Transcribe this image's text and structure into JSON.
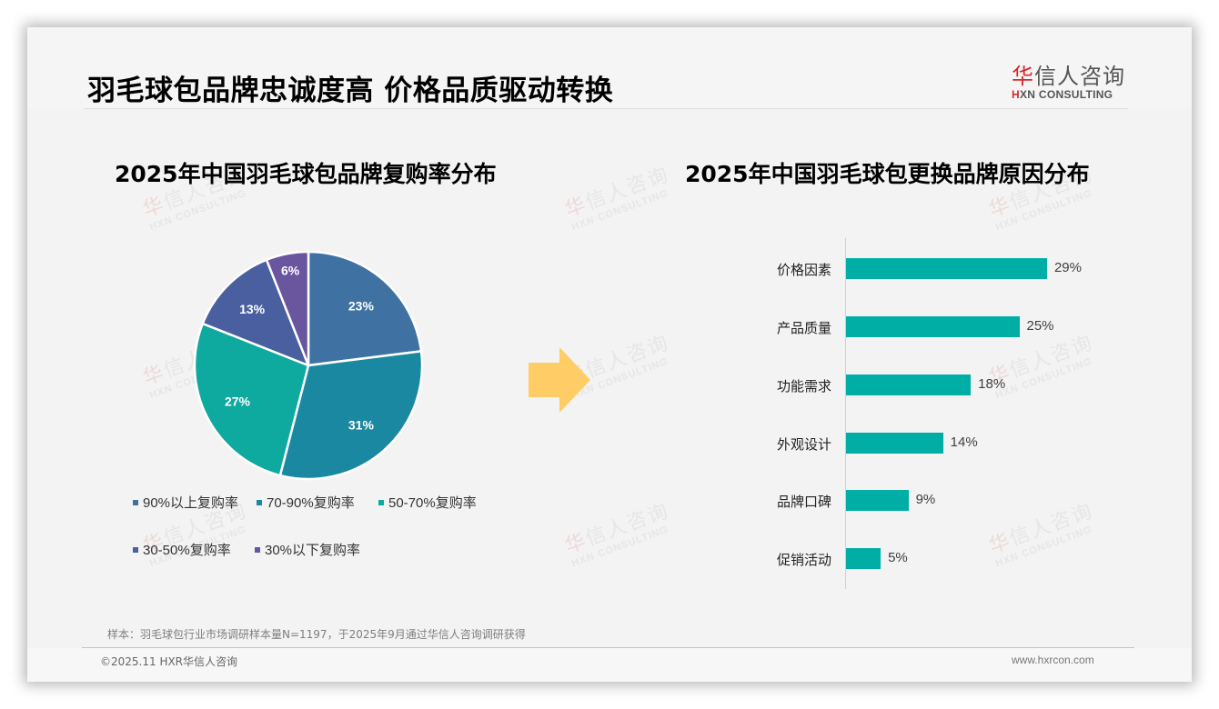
{
  "header": {
    "title": "羽毛球包品牌忠诚度高 价格品质驱动转换",
    "logo": {
      "cn_first": "华",
      "cn_rest": "信人咨询",
      "en_first": "H",
      "en_rest": "XN CONSULTING"
    }
  },
  "watermark": {
    "cn_first": "华",
    "cn_rest": "信人咨询",
    "en": "HXN CONSULTING"
  },
  "colors": {
    "background": "#f3f3f3",
    "bar": "#00aea5",
    "arrow": "#ffcc66",
    "brand_red": "#d8282b"
  },
  "chart_data": [
    {
      "type": "pie",
      "title": "2025年中国羽毛球包品牌复购率分布",
      "categories": [
        "90%以上复购率",
        "70-90%复购率",
        "50-70%复购率",
        "30-50%复购率",
        "30%以下复购率"
      ],
      "values": [
        23,
        31,
        27,
        13,
        6
      ],
      "labels": [
        "23%",
        "31%",
        "27%",
        "13%",
        "6%"
      ],
      "colors": [
        "#3f72a3",
        "#1a88a0",
        "#0ea99f",
        "#4a5fa0",
        "#6a559f"
      ],
      "start_angle": "top, clockwise",
      "legend_position": "bottom"
    },
    {
      "type": "bar",
      "orientation": "horizontal",
      "title": "2025年中国羽毛球包更换品牌原因分布",
      "categories": [
        "价格因素",
        "产品质量",
        "功能需求",
        "外观设计",
        "品牌口碑",
        "促销活动"
      ],
      "values": [
        29,
        25,
        18,
        14,
        9,
        5
      ],
      "labels": [
        "29%",
        "25%",
        "18%",
        "14%",
        "9%",
        "5%"
      ],
      "color": "#00aea5",
      "xlabel": "",
      "ylabel": "",
      "xlim": [
        0,
        35
      ],
      "grid": false
    }
  ],
  "note": "样本：羽毛球包行业市场调研样本量N=1197，于2025年9月通过华信人咨询调研获得",
  "footer": {
    "copyright": "©2025.11 HXR华信人咨询",
    "website": "www.hxrcon.com"
  }
}
